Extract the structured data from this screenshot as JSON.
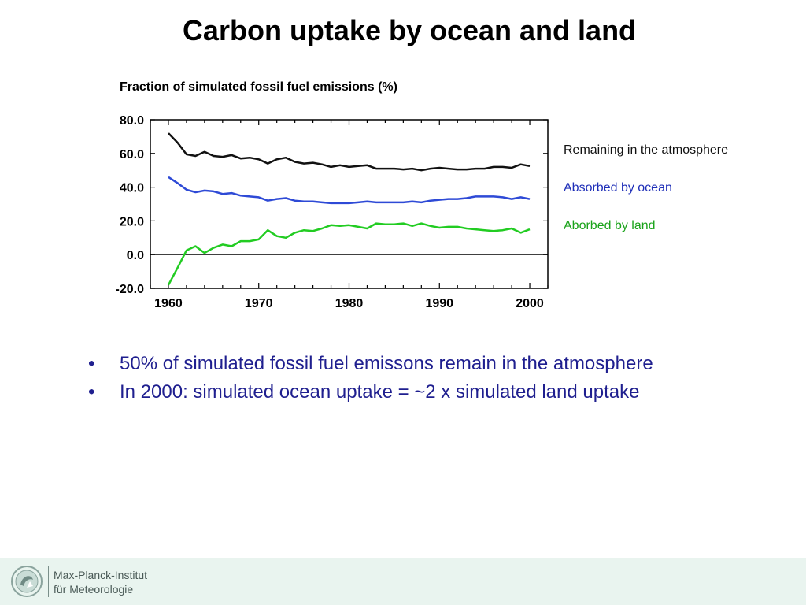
{
  "slide": {
    "title": "Carbon uptake by ocean and land",
    "bullets": [
      "50% of simulated fossil fuel emissons remain in the atmosphere",
      "In 2000: simulated ocean uptake = ~2 x simulated land uptake"
    ],
    "bullet_symbol": "•"
  },
  "footer": {
    "logo_line1": "Max-Planck-Institut",
    "logo_line2": "für Meteorologie"
  },
  "chart_data": {
    "type": "line",
    "title": "Fraction of simulated fossil fuel emissions (%)",
    "xlabel": "",
    "ylabel": "",
    "xlim": [
      1958,
      2002
    ],
    "ylim": [
      -20,
      80
    ],
    "xticks": [
      1960,
      1970,
      1980,
      1990,
      2000
    ],
    "yticks": [
      -20,
      0,
      20,
      40,
      60,
      80
    ],
    "ytick_labels": [
      "-20.0",
      "0.0",
      "20.0",
      "40.0",
      "60.0",
      "80.0"
    ],
    "zero_line": true,
    "grid": false,
    "legend_position": "right",
    "x": [
      1960,
      1961,
      1962,
      1963,
      1964,
      1965,
      1966,
      1967,
      1968,
      1969,
      1970,
      1971,
      1972,
      1973,
      1974,
      1975,
      1976,
      1977,
      1978,
      1979,
      1980,
      1981,
      1982,
      1983,
      1984,
      1985,
      1986,
      1987,
      1988,
      1989,
      1990,
      1991,
      1992,
      1993,
      1994,
      1995,
      1996,
      1997,
      1998,
      1999,
      2000
    ],
    "series": [
      {
        "name": "Remaining in the atmosphere",
        "color": "#111111",
        "values": [
          72,
          66.5,
          59.5,
          58.5,
          61,
          58.5,
          58,
          59,
          57,
          57.5,
          56.5,
          54,
          56.5,
          57.5,
          55,
          54,
          54.5,
          53.5,
          52,
          53,
          52,
          52.5,
          53,
          51,
          51,
          51,
          50.5,
          51,
          50,
          51,
          51.5,
          51,
          50.5,
          50.5,
          51,
          51,
          52,
          52,
          51.5,
          53.5,
          52.5
        ]
      },
      {
        "name": "Absorbed by ocean",
        "color": "#2e4ad6",
        "values": [
          46,
          42.5,
          38.5,
          37,
          38,
          37.5,
          36,
          36.5,
          35,
          34.5,
          34,
          32,
          33,
          33.5,
          32,
          31.5,
          31.5,
          31,
          30.5,
          30.5,
          30.5,
          31,
          31.5,
          31,
          31,
          31,
          31,
          31.5,
          31,
          32,
          32.5,
          33,
          33,
          33.5,
          34.5,
          34.5,
          34.5,
          34,
          33,
          34,
          33
        ]
      },
      {
        "name": "Aborbed by land",
        "color": "#22cc22",
        "values": [
          -18,
          -8,
          2.5,
          5,
          1,
          4,
          6,
          5,
          8,
          8,
          9,
          14.5,
          11,
          10,
          13,
          14.5,
          14,
          15.5,
          17.5,
          17,
          17.5,
          16.5,
          15.5,
          18.5,
          18,
          18,
          18.5,
          17,
          18.5,
          17,
          16,
          16.5,
          16.5,
          15.5,
          15,
          14.5,
          14,
          14.5,
          15.5,
          13,
          15
        ]
      }
    ]
  },
  "legend_colors": {
    "atmosphere_text": "#111111",
    "ocean_text": "#1f2fb8",
    "land_text": "#1aa31a"
  }
}
